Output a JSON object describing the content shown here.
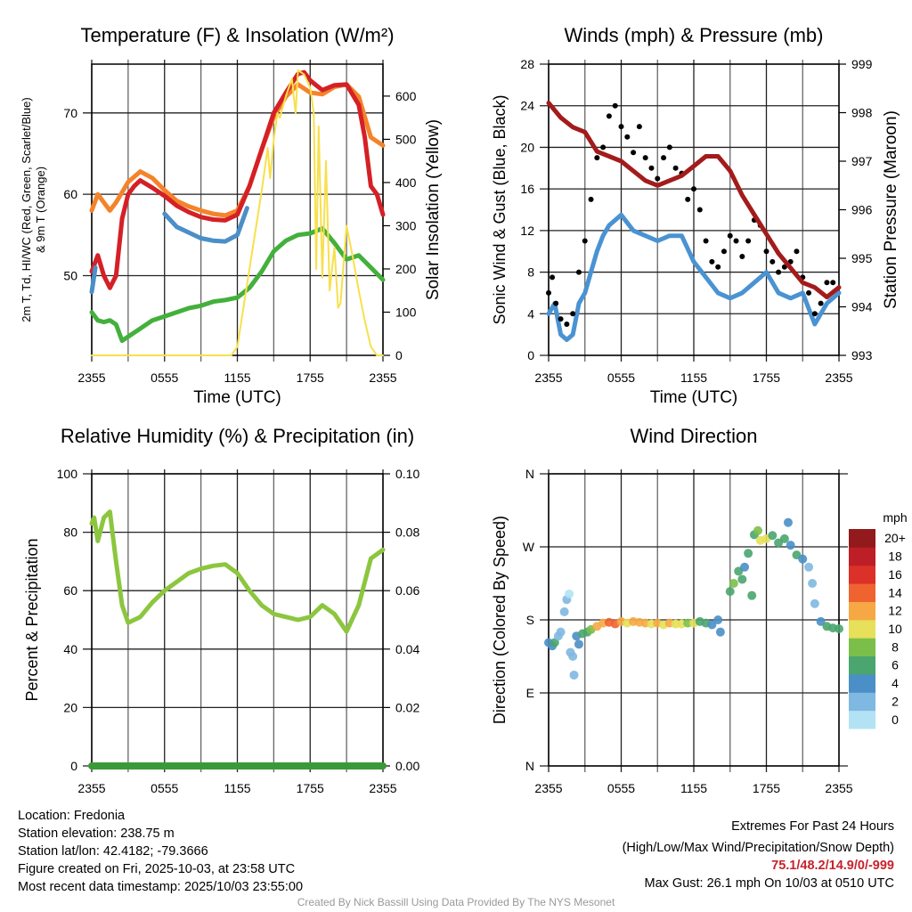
{
  "chart_data": [
    {
      "id": "temperature",
      "type": "line",
      "title": "Temperature (F) & Insolation (W/m²)",
      "xlabel": "Time (UTC)",
      "ylabel_left": [
        "2m T, Td, HI/WC (Red, Green, Scarlet/Blue)",
        "& 9m T (Orange)"
      ],
      "ylabel_right": "Solar Insolation (Yellow)",
      "x_unit": "hours after 2355 UTC",
      "xlim": [
        0,
        24
      ],
      "xticks": [
        "2355",
        "0555",
        "1155",
        "1755",
        "2355"
      ],
      "ylim_left": [
        40.2,
        76
      ],
      "yticks_left": [
        50,
        60,
        70
      ],
      "ylim_right": [
        0,
        674
      ],
      "yticks_right": [
        0,
        100,
        200,
        300,
        400,
        500,
        600
      ],
      "series": [
        {
          "name": "9m T",
          "color": "#f4832a",
          "axis": "left",
          "x": [
            0,
            0.5,
            1,
            1.5,
            2,
            3,
            4,
            5,
            6,
            7,
            8,
            9,
            10,
            11,
            12,
            13,
            14,
            15,
            16,
            17,
            18,
            19,
            20,
            21,
            22,
            23,
            24
          ],
          "y": [
            58,
            60,
            59,
            58,
            59,
            61.5,
            62.8,
            62,
            60.5,
            59.2,
            58.5,
            58,
            57.6,
            57.4,
            58,
            61,
            65.5,
            69.5,
            72,
            73.5,
            72.5,
            72.3,
            73.2,
            73.5,
            72,
            67,
            66
          ]
        },
        {
          "name": "2m T",
          "color": "#d42026",
          "axis": "left",
          "x": [
            0,
            0.5,
            1,
            1.5,
            2,
            2.5,
            3,
            3.5,
            4,
            5,
            6,
            7,
            8,
            9,
            10,
            11,
            12,
            13,
            14,
            15,
            16,
            17,
            17.5,
            18,
            19,
            20,
            21,
            22,
            22.5,
            23,
            23.5,
            24
          ],
          "y": [
            50.5,
            52.5,
            50,
            48.5,
            50,
            57,
            60,
            61,
            61.7,
            60.8,
            59.8,
            58.6,
            57.8,
            57.2,
            56.9,
            56.8,
            57.5,
            61,
            65.5,
            70,
            72.5,
            74.8,
            75,
            74,
            72.8,
            73.4,
            73.5,
            71,
            67,
            61,
            60,
            57.5
          ]
        },
        {
          "name": "HI/WC",
          "color": "#4a8fc7",
          "axis": "left",
          "x": [
            0,
            0.3,
            0.31,
            6,
            7,
            8,
            9,
            10,
            11,
            12,
            12.8
          ],
          "y": [
            48,
            51,
            null,
            57.6,
            56,
            55.3,
            54.6,
            54.3,
            54.2,
            55,
            58.3
          ]
        },
        {
          "name": "2m Td",
          "color": "#44b03c",
          "axis": "left",
          "x": [
            0,
            0.5,
            1,
            1.5,
            2,
            2.5,
            3,
            4,
            5,
            6,
            7,
            8,
            9,
            10,
            11,
            12,
            13,
            14,
            15,
            16,
            17,
            18,
            19,
            20,
            21,
            22,
            23,
            24
          ],
          "y": [
            45.5,
            44.5,
            44.3,
            44.5,
            44,
            42,
            42.5,
            43.5,
            44.5,
            45,
            45.5,
            46,
            46.3,
            46.8,
            47,
            47.3,
            48.5,
            50.5,
            53,
            54.3,
            55,
            55.2,
            55.8,
            54,
            52,
            52.5,
            51,
            49.5
          ]
        },
        {
          "name": "Solar Insolation",
          "color": "#f7e04b",
          "axis": "right",
          "width": 2,
          "x": [
            0,
            11.5,
            12,
            13,
            14,
            14.5,
            14.7,
            15,
            15.3,
            15.5,
            16,
            16.5,
            16.8,
            17,
            17.5,
            18,
            18.3,
            18.5,
            18.7,
            19,
            19.3,
            19.6,
            20,
            20.3,
            20.5,
            21,
            21.5,
            22,
            22.5,
            23,
            23.5,
            24
          ],
          "y": [
            0,
            0,
            20,
            200,
            380,
            480,
            410,
            500,
            560,
            550,
            600,
            640,
            560,
            660,
            650,
            620,
            560,
            200,
            530,
            180,
            450,
            150,
            250,
            110,
            120,
            300,
            230,
            150,
            80,
            20,
            0,
            0
          ]
        }
      ]
    },
    {
      "id": "winds",
      "type": "line",
      "title": "Winds (mph) & Pressure (mb)",
      "xlabel": "Time (UTC)",
      "ylabel_left": [
        "Sonic Wind & Gust (Blue, Black)"
      ],
      "ylabel_right": "Station Pressure (Maroon)",
      "x_unit": "hours after 2355 UTC",
      "xlim": [
        0,
        24
      ],
      "xticks": [
        "2355",
        "0555",
        "1155",
        "1755",
        "2355"
      ],
      "ylim_left": [
        0,
        28
      ],
      "yticks_left": [
        0,
        4,
        8,
        12,
        16,
        20,
        24,
        28
      ],
      "ylim_right": [
        993,
        999
      ],
      "yticks_right": [
        993,
        994,
        995,
        996,
        997,
        998,
        999
      ],
      "series": [
        {
          "name": "Sonic Wind",
          "color": "#4a93d2",
          "axis": "left",
          "x": [
            0,
            0.5,
            1,
            1.5,
            2,
            2.5,
            3,
            3.5,
            4,
            4.5,
            5,
            6,
            7,
            8,
            9,
            10,
            11,
            12,
            13,
            14,
            15,
            16,
            17,
            18,
            19,
            20,
            21,
            22,
            23,
            24
          ],
          "y": [
            4,
            5,
            2,
            1.5,
            2,
            5,
            6,
            8,
            10,
            11.5,
            12.5,
            13.5,
            12,
            11.5,
            11,
            11.5,
            11.5,
            9,
            7.5,
            6,
            5.5,
            6,
            7,
            8,
            6,
            5.5,
            6,
            3,
            5,
            6
          ]
        },
        {
          "name": "Gust",
          "color": "#000000",
          "axis": "left",
          "mode": "scatter",
          "x": [
            0,
            0.3,
            0.6,
            1,
            1.5,
            2,
            2.5,
            3,
            3.5,
            4,
            4.5,
            5,
            5.5,
            6,
            6.5,
            7,
            7.5,
            8,
            8.5,
            9,
            9.5,
            10,
            10.5,
            11,
            11.5,
            12,
            12.5,
            13,
            13.5,
            14,
            14.5,
            15,
            15.5,
            16,
            16.5,
            17,
            17.5,
            18,
            18.5,
            19,
            19.5,
            20,
            20.5,
            21,
            21.5,
            22,
            22.5,
            23,
            23.5
          ],
          "y": [
            6,
            7.5,
            5,
            3.5,
            3,
            4,
            8,
            11,
            15,
            19,
            20,
            23,
            24,
            22,
            21,
            19.5,
            22,
            19,
            18,
            17,
            19,
            20,
            18,
            17.5,
            15,
            16,
            14,
            11,
            9,
            8.5,
            10,
            11.5,
            11,
            9.5,
            11,
            13,
            12.5,
            10,
            9,
            8,
            8.5,
            9,
            10,
            7.5,
            6,
            4,
            5,
            7,
            7
          ]
        },
        {
          "name": "Station Pressure",
          "color": "#a31b1b",
          "axis": "right",
          "x": [
            0,
            1,
            2,
            3,
            4,
            5,
            6,
            7,
            8,
            9,
            10,
            11,
            12,
            13,
            14,
            15,
            16,
            17,
            18,
            19,
            20,
            21,
            22,
            23,
            24
          ],
          "y": [
            998.2,
            997.9,
            997.7,
            997.6,
            997.2,
            997.1,
            997.0,
            996.8,
            996.6,
            996.5,
            996.6,
            996.7,
            996.9,
            997.1,
            997.1,
            996.8,
            996.3,
            995.9,
            995.5,
            995.1,
            994.8,
            994.5,
            994.4,
            994.2,
            994.4
          ]
        }
      ]
    },
    {
      "id": "humidity",
      "type": "line",
      "title": "Relative Humidity (%) & Precipitation (in)",
      "xlabel": "",
      "ylabel_left": [
        "Percent & Precipitation"
      ],
      "ylabel_right": "",
      "x_unit": "hours after 2355 UTC",
      "xlim": [
        0,
        24
      ],
      "xticks": [
        "2355",
        "0555",
        "1155",
        "1755",
        "2355"
      ],
      "ylim_left": [
        0,
        100
      ],
      "yticks_left": [
        0,
        20,
        40,
        60,
        80,
        100
      ],
      "ylim_right": [
        0,
        0.1
      ],
      "yticks_right": [
        "0.00",
        "0.02",
        "0.04",
        "0.06",
        "0.08",
        "0.10"
      ],
      "series": [
        {
          "name": "Relative Humidity",
          "color": "#8cc63f",
          "axis": "left",
          "x": [
            0,
            0.2,
            0.5,
            1,
            1.5,
            2,
            2.5,
            3,
            4,
            5,
            6,
            7,
            8,
            9,
            10,
            11,
            12,
            13,
            14,
            15,
            16,
            17,
            18,
            19,
            20,
            21,
            22,
            23,
            24
          ],
          "y": [
            83,
            85,
            77,
            85,
            87,
            70,
            55,
            49,
            51,
            56,
            60,
            63,
            66,
            67.5,
            68.5,
            69,
            66,
            60,
            55,
            52,
            51,
            50,
            51,
            55,
            52,
            46,
            55,
            71,
            74
          ]
        },
        {
          "name": "Precipitation",
          "color": "#3a9a3a",
          "axis": "right",
          "width": 8,
          "x": [
            0,
            24
          ],
          "y": [
            0,
            0
          ]
        }
      ]
    },
    {
      "id": "direction",
      "type": "scatter",
      "title": "Wind Direction",
      "xlabel": "",
      "ylabel_left": [
        "Direction (Colored By Speed)"
      ],
      "ylabel_right": "",
      "x_unit": "hours after 2355 UTC",
      "xlim": [
        0,
        24
      ],
      "xticks": [
        "2355",
        "0555",
        "1155",
        "1755",
        "2355"
      ],
      "ylim_left": [
        0,
        360
      ],
      "yticks_left": [
        0,
        90,
        180,
        270,
        360
      ],
      "ytick_labels": [
        "N",
        "E",
        "S",
        "W",
        "N"
      ],
      "colorbar": {
        "title": "mph",
        "labels": [
          "0",
          "2",
          "4",
          "6",
          "8",
          "10",
          "12",
          "14",
          "16",
          "18",
          "20+"
        ],
        "colors": [
          "#b3e2f5",
          "#7fb8e0",
          "#4a8fc7",
          "#4aa56e",
          "#7bbf4a",
          "#e6e05a",
          "#f6a844",
          "#ef6330",
          "#db3128",
          "#be1e26",
          "#921a1c"
        ]
      },
      "points": [
        [
          0,
          152,
          4
        ],
        [
          0.3,
          148,
          4
        ],
        [
          0.5,
          152,
          6
        ],
        [
          0.8,
          160,
          2
        ],
        [
          1,
          165,
          2
        ],
        [
          1.3,
          190,
          1
        ],
        [
          1.5,
          205,
          2
        ],
        [
          1.7,
          212,
          0
        ],
        [
          1.8,
          140,
          2
        ],
        [
          2,
          135,
          2
        ],
        [
          2.1,
          112,
          2
        ],
        [
          2.3,
          160,
          4
        ],
        [
          2.5,
          150,
          4
        ],
        [
          2.8,
          163,
          6
        ],
        [
          3.2,
          165,
          6
        ],
        [
          3.5,
          168,
          8
        ],
        [
          4,
          172,
          11
        ],
        [
          4.5,
          176,
          12
        ],
        [
          5,
          177,
          14
        ],
        [
          5.5,
          175,
          14
        ],
        [
          6,
          178,
          12
        ],
        [
          6.5,
          176,
          10
        ],
        [
          7,
          178,
          12
        ],
        [
          7.5,
          177,
          12
        ],
        [
          8,
          176,
          12
        ],
        [
          8.5,
          175,
          10
        ],
        [
          9,
          176,
          12
        ],
        [
          9.5,
          174,
          10
        ],
        [
          10,
          176,
          12
        ],
        [
          10.5,
          175,
          10
        ],
        [
          11,
          175,
          10
        ],
        [
          11.5,
          176,
          8
        ],
        [
          12,
          176,
          10
        ],
        [
          12.5,
          178,
          6
        ],
        [
          13,
          176,
          6
        ],
        [
          13.5,
          174,
          4
        ],
        [
          14,
          180,
          4
        ],
        [
          14.2,
          165,
          4
        ],
        [
          15,
          215,
          6
        ],
        [
          15.3,
          225,
          8
        ],
        [
          15.7,
          240,
          6
        ],
        [
          16,
          230,
          6
        ],
        [
          16.2,
          245,
          4
        ],
        [
          16.5,
          262,
          6
        ],
        [
          16.8,
          210,
          6
        ],
        [
          17,
          285,
          6
        ],
        [
          17.3,
          290,
          8
        ],
        [
          17.5,
          278,
          10
        ],
        [
          18,
          280,
          10
        ],
        [
          18.5,
          284,
          6
        ],
        [
          19,
          275,
          6
        ],
        [
          19.5,
          280,
          6
        ],
        [
          19.8,
          300,
          4
        ],
        [
          20,
          272,
          4
        ],
        [
          20.5,
          260,
          6
        ],
        [
          21,
          255,
          4
        ],
        [
          21.5,
          245,
          2
        ],
        [
          21.8,
          225,
          2
        ],
        [
          22,
          200,
          2
        ],
        [
          22.5,
          178,
          4
        ],
        [
          23,
          172,
          6
        ],
        [
          23.5,
          170,
          6
        ],
        [
          24,
          169,
          6
        ]
      ]
    }
  ],
  "footer": {
    "location": "Location: Fredonia",
    "elevation": "Station elevation: 238.75 m",
    "latlon": "Station lat/lon: 42.4182; -79.3666",
    "created": "Figure created on Fri, 2025-10-03, at 23:58 UTC",
    "recent": "Most recent data timestamp: 2025/10/03 23:55:00",
    "extremes_title": "Extremes For Past 24 Hours",
    "extremes_legend": "(High/Low/Max Wind/Precipitation/Snow Depth)",
    "extremes_values": "75.1/48.2/14.9/0/-999",
    "max_gust": "Max Gust: 26.1 mph On 10/03 at 0510 UTC",
    "credit": "Created By Nick Bassill Using Data Provided By The NYS Mesonet"
  }
}
